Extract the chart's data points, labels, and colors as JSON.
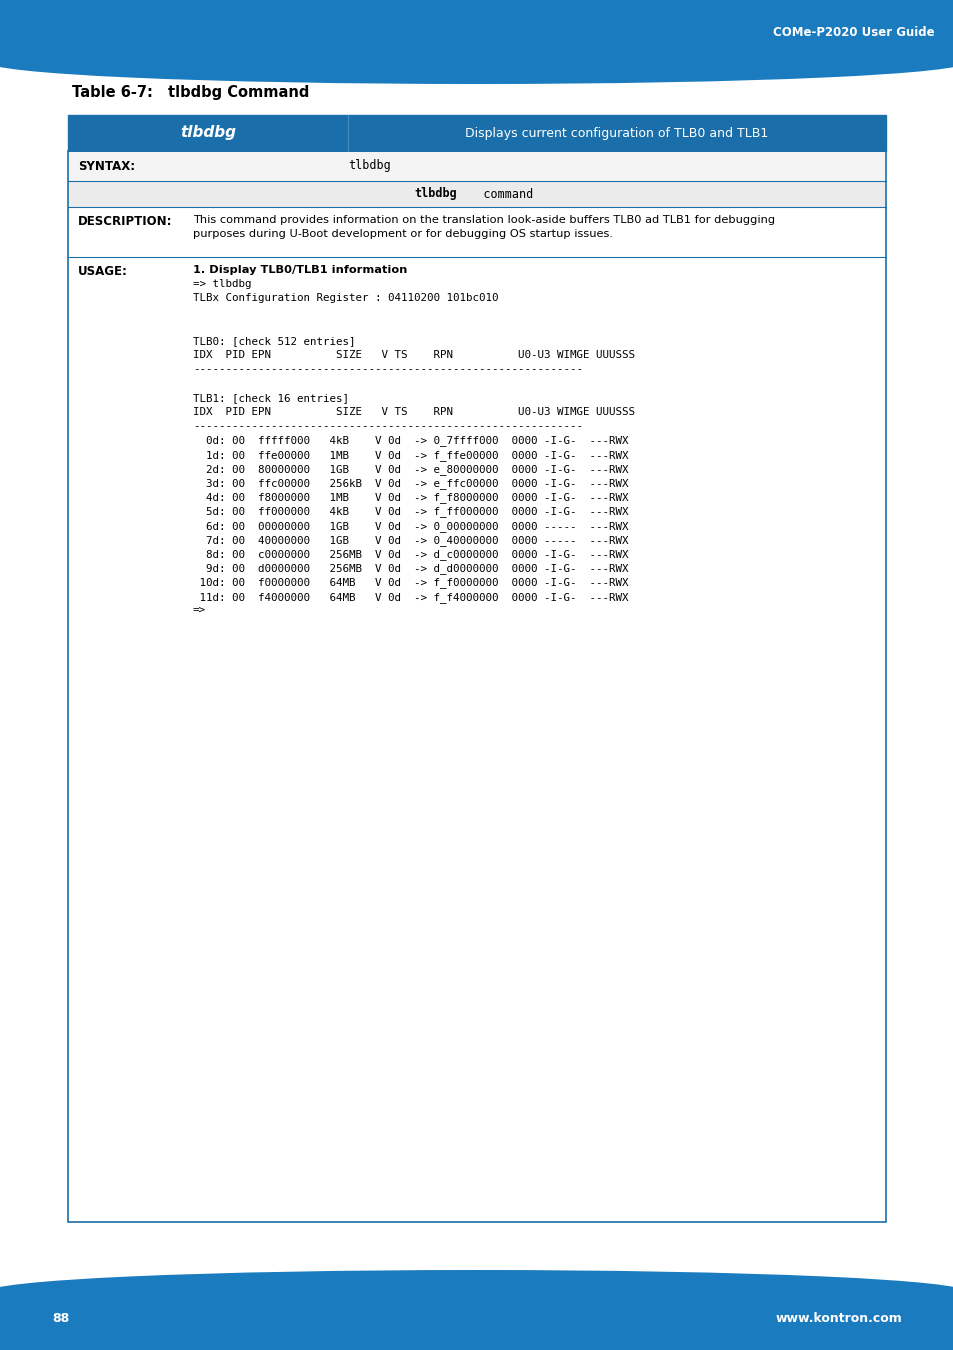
{
  "header_bg": "#1a6faa",
  "header_text_color": "#ffffff",
  "header_label": "tlbdbg",
  "header_desc": "Displays current configuration of TLB0 and TLB1",
  "table_border_color": "#1a6faa",
  "title_label": "Table 6-7:",
  "title_text": "tlbdbg Command",
  "top_bar_color": "#1a7bbf",
  "bottom_bar_color": "#1a7bbf",
  "top_bar_text": "COMe-P2020 User Guide",
  "bottom_left_text": "88",
  "bottom_right_text": "www.kontron.com",
  "syntax_label": "SYNTAX:",
  "syntax_value": "tlbdbg",
  "syntax2_bold": "tlbdbg",
  "syntax2_rest": "   command",
  "desc_label": "DESCRIPTION:",
  "desc_line1": "This command provides information on the translation look-aside buffers TLB0 ad TLB1 for debugging",
  "desc_line2": "purposes during U-Boot development or for debugging OS startup issues.",
  "usage_label": "USAGE:",
  "usage_line0_bold": "1. Display TLB0/TLB1 information",
  "usage_lines_mono": [
    "=> tlbdbg",
    "TLBx Configuration Register : 04110200 101bc010",
    "",
    "",
    "TLB0: [check 512 entries]",
    "IDX  PID EPN          SIZE   V TS    RPN          U0-U3 WIMGE UUUSSS",
    "------------------------------------------------------------",
    "",
    "TLB1: [check 16 entries]",
    "IDX  PID EPN          SIZE   V TS    RPN          U0-U3 WIMGE UUUSSS",
    "------------------------------------------------------------",
    "  0d: 00  fffff000   4kB    V 0d  -> 0_7ffff000  0000 -I-G-  ---RWX",
    "  1d: 00  ffe00000   1MB    V 0d  -> f_ffe00000  0000 -I-G-  ---RWX",
    "  2d: 00  80000000   1GB    V 0d  -> e_80000000  0000 -I-G-  ---RWX",
    "  3d: 00  ffc00000   256kB  V 0d  -> e_ffc00000  0000 -I-G-  ---RWX",
    "  4d: 00  f8000000   1MB    V 0d  -> f_f8000000  0000 -I-G-  ---RWX",
    "  5d: 00  ff000000   4kB    V 0d  -> f_ff000000  0000 -I-G-  ---RWX",
    "  6d: 00  00000000   1GB    V 0d  -> 0_00000000  0000 -----  ---RWX",
    "  7d: 00  40000000   1GB    V 0d  -> 0_40000000  0000 -----  ---RWX",
    "  8d: 00  c0000000   256MB  V 0d  -> d_c0000000  0000 -I-G-  ---RWX",
    "  9d: 00  d0000000   256MB  V 0d  -> d_d0000000  0000 -I-G-  ---RWX",
    " 10d: 00  f0000000   64MB   V 0d  -> f_f0000000  0000 -I-G-  ---RWX",
    " 11d: 00  f4000000   64MB   V 0d  -> f_f4000000  0000 -I-G-  ---RWX",
    "=>"
  ]
}
